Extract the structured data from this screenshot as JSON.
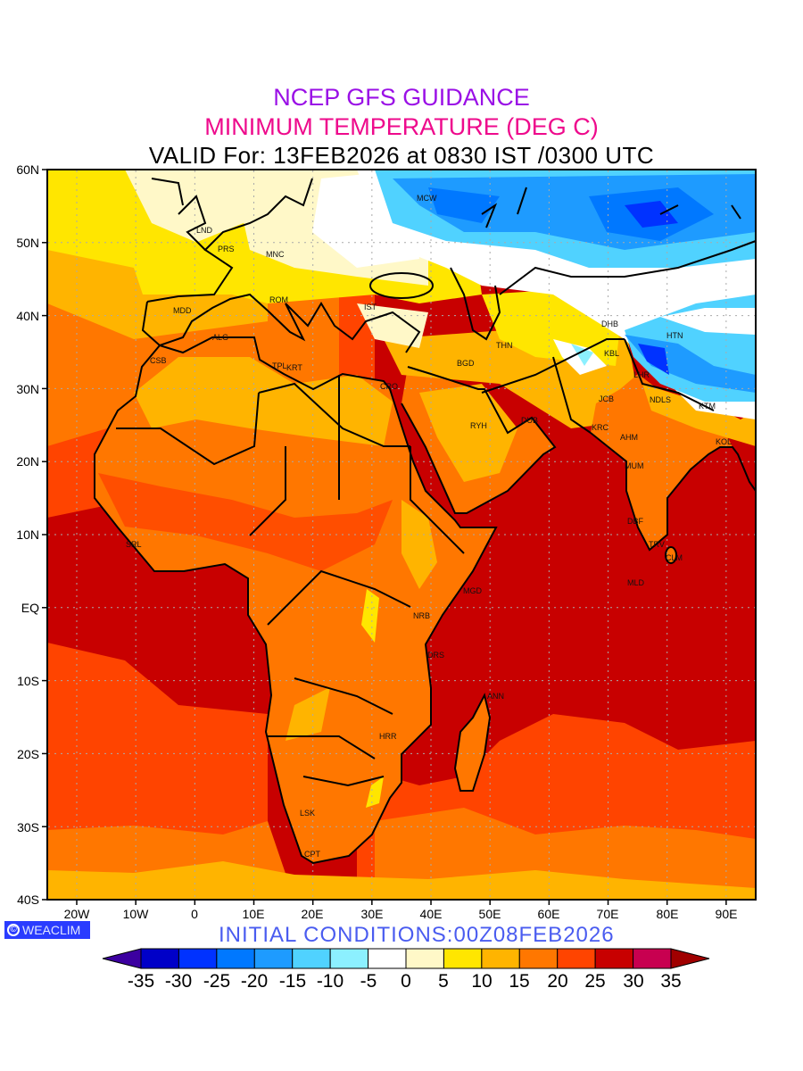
{
  "title": {
    "line1": "NCEP GFS GUIDANCE",
    "line2": "MINIMUM TEMPERATURE (DEG C)",
    "line3": "VALID For: 13FEB2026 at 0830 IST /0300 UTC"
  },
  "colors": {
    "title1": "#9a10e6",
    "title2": "#ee0a8c",
    "initial": "#4a5cf0",
    "logo_bg": "#2a3cff"
  },
  "axes": {
    "lat_labels": [
      "60N",
      "50N",
      "40N",
      "30N",
      "20N",
      "10N",
      "EQ",
      "10S",
      "20S",
      "30S",
      "40S"
    ],
    "lon_labels": [
      "20W",
      "10W",
      "0",
      "10E",
      "20E",
      "30E",
      "40E",
      "50E",
      "60E",
      "70E",
      "80E",
      "90E"
    ]
  },
  "cities": [
    "LND",
    "PRS",
    "MNC",
    "ROM",
    "MDD",
    "ALG",
    "CSB",
    "TPL",
    "KRT",
    "IST",
    "MCW",
    "CRO",
    "BGD",
    "THN",
    "DHB",
    "KBL",
    "HTN",
    "LHR",
    "JCB",
    "NDLS",
    "KTM",
    "KRC",
    "AHM",
    "MUM",
    "DBF",
    "TRV",
    "CLM",
    "KOL",
    "RYH",
    "DUB",
    "MLD",
    "MGD",
    "NRB",
    "DRS",
    "ANN",
    "HRR",
    "LSK",
    "CPT",
    "SRL"
  ],
  "logo": {
    "text": "WEACLIM",
    "symbol": "©"
  },
  "initial_conditions": "INITIAL  CONDITIONS:00Z08FEB2026",
  "colorbar": {
    "labels": [
      "-35",
      "-30",
      "-25",
      "-20",
      "-15",
      "-10",
      "-5",
      "0",
      "5",
      "10",
      "15",
      "20",
      "25",
      "30",
      "35"
    ],
    "under_color": "#3c00a0",
    "over_color": "#a00000",
    "colors": [
      "#0000c8",
      "#0032ff",
      "#0078ff",
      "#1e9bff",
      "#50d2ff",
      "#8cf0ff",
      "#ffffff",
      "#fff8c8",
      "#ffe600",
      "#ffb400",
      "#ff7700",
      "#ff4400",
      "#c80000",
      "#c80050"
    ]
  }
}
